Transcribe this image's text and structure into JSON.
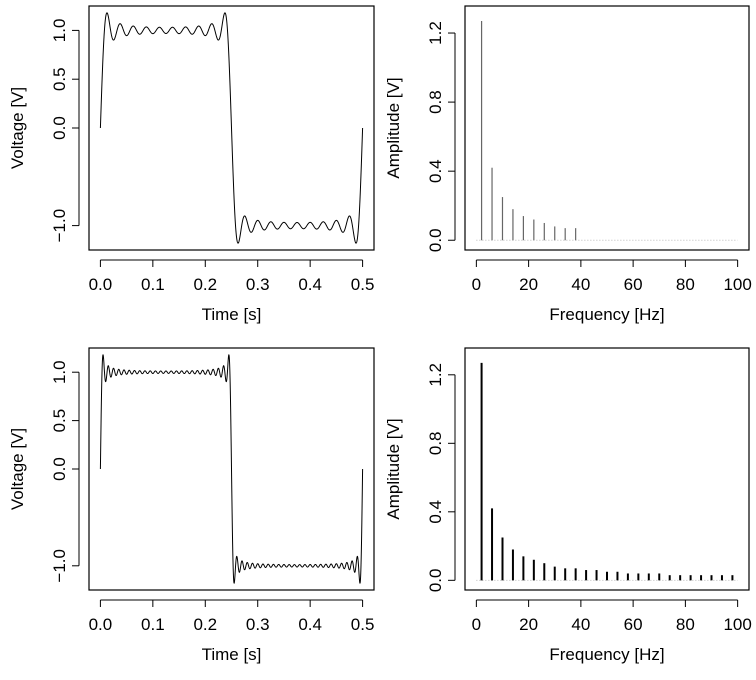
{
  "chart_data": [
    {
      "type": "line",
      "title": "",
      "xlabel": "Time [s]",
      "ylabel": "Voltage [V]",
      "xlim": [
        0,
        0.5
      ],
      "ylim": [
        -1.15,
        1.15
      ],
      "x_ticks": [
        0.0,
        0.1,
        0.2,
        0.3,
        0.4,
        0.5
      ],
      "x_tick_labels": [
        "0.0",
        "0.1",
        "0.2",
        "0.3",
        "0.4",
        "0.5"
      ],
      "y_ticks": [
        -1.0,
        0.0,
        0.5,
        1.0
      ],
      "y_tick_labels": [
        "−1.0",
        "0.0",
        "0.5",
        "1.0"
      ],
      "signal": "square wave approximated by a sum of odd sine harmonics",
      "fundamental_hz": 2,
      "harmonics_max_hz": 38,
      "line_color": "#000000"
    },
    {
      "type": "bar",
      "title": "",
      "xlabel": "Frequency [Hz]",
      "ylabel": "Amplitude [V]",
      "xlim": [
        0,
        100
      ],
      "ylim": [
        0,
        1.3
      ],
      "x_ticks": [
        0,
        20,
        40,
        60,
        80,
        100
      ],
      "x_tick_labels": [
        "0",
        "20",
        "40",
        "60",
        "80",
        "100"
      ],
      "y_ticks": [
        0.0,
        0.4,
        0.8,
        1.2
      ],
      "y_tick_labels": [
        "0.0",
        "0.4",
        "0.8",
        "1.2"
      ],
      "x": [
        2,
        6,
        10,
        14,
        18,
        22,
        26,
        30,
        34,
        38
      ],
      "values": [
        1.27,
        0.42,
        0.25,
        0.18,
        0.14,
        0.12,
        0.1,
        0.08,
        0.07,
        0.07
      ],
      "bar_color": "#666666"
    },
    {
      "type": "line",
      "title": "",
      "xlabel": "Time [s]",
      "ylabel": "Voltage [V]",
      "xlim": [
        0,
        0.5
      ],
      "ylim": [
        -1.15,
        1.15
      ],
      "x_ticks": [
        0.0,
        0.1,
        0.2,
        0.3,
        0.4,
        0.5
      ],
      "x_tick_labels": [
        "0.0",
        "0.1",
        "0.2",
        "0.3",
        "0.4",
        "0.5"
      ],
      "y_ticks": [
        -1.0,
        0.0,
        0.5,
        1.0
      ],
      "y_tick_labels": [
        "−1.0",
        "0.0",
        "0.5",
        "1.0"
      ],
      "signal": "square wave approximated by a sum of odd sine harmonics",
      "fundamental_hz": 2,
      "harmonics_max_hz": 98,
      "line_color": "#000000"
    },
    {
      "type": "bar",
      "title": "",
      "xlabel": "Frequency [Hz]",
      "ylabel": "Amplitude [V]",
      "xlim": [
        0,
        100
      ],
      "ylim": [
        0,
        1.3
      ],
      "x_ticks": [
        0,
        20,
        40,
        60,
        80,
        100
      ],
      "x_tick_labels": [
        "0",
        "20",
        "40",
        "60",
        "80",
        "100"
      ],
      "y_ticks": [
        0.0,
        0.4,
        0.8,
        1.2
      ],
      "y_tick_labels": [
        "0.0",
        "0.4",
        "0.8",
        "1.2"
      ],
      "x": [
        2,
        6,
        10,
        14,
        18,
        22,
        26,
        30,
        34,
        38,
        42,
        46,
        50,
        54,
        58,
        62,
        66,
        70,
        74,
        78,
        82,
        86,
        90,
        94,
        98
      ],
      "values": [
        1.27,
        0.42,
        0.25,
        0.18,
        0.14,
        0.12,
        0.1,
        0.08,
        0.07,
        0.07,
        0.06,
        0.06,
        0.05,
        0.05,
        0.04,
        0.04,
        0.04,
        0.04,
        0.03,
        0.03,
        0.03,
        0.03,
        0.03,
        0.03,
        0.03
      ],
      "bar_color": "#000000"
    }
  ]
}
